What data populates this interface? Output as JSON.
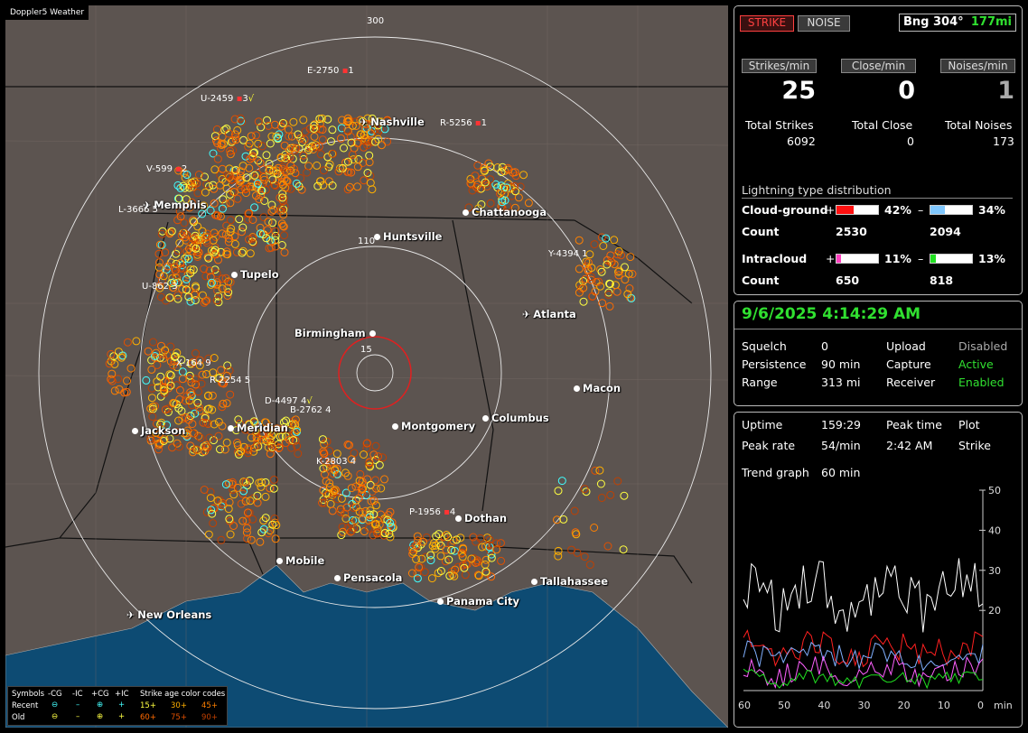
{
  "map": {
    "title": "Doppler5 Weather",
    "ring_labels": {
      "r300": "300",
      "r110": "110",
      "r15": "15"
    },
    "cities": [
      {
        "name": "Nashville",
        "airport": true
      },
      {
        "name": "Memphis",
        "airport": true
      },
      {
        "name": "Chattanooga",
        "airport": false
      },
      {
        "name": "Huntsville",
        "airport": false
      },
      {
        "name": "Tupelo",
        "airport": false
      },
      {
        "name": "Atlanta",
        "airport": true
      },
      {
        "name": "Birmingham",
        "airport": false
      },
      {
        "name": "Macon",
        "airport": false
      },
      {
        "name": "Jackson",
        "airport": false
      },
      {
        "name": "Meridian",
        "airport": false
      },
      {
        "name": "Montgomery",
        "airport": false
      },
      {
        "name": "Columbus",
        "airport": false
      },
      {
        "name": "Dothan",
        "airport": false
      },
      {
        "name": "Mobile",
        "airport": false
      },
      {
        "name": "Pensacola",
        "airport": false
      },
      {
        "name": "Tallahassee",
        "airport": false
      },
      {
        "name": "Panama City",
        "airport": false
      },
      {
        "name": "New Orleans",
        "airport": true
      }
    ],
    "stations": [
      {
        "id": "E-2750",
        "count": "1"
      },
      {
        "id": "U-2459",
        "count": "3"
      },
      {
        "id": "R-5256",
        "count": "1"
      },
      {
        "id": "V-599",
        "count": "2"
      },
      {
        "id": "L-3666",
        "count": "5"
      },
      {
        "id": "Y-4394",
        "count": "1"
      },
      {
        "id": "U-862",
        "count": "3"
      },
      {
        "id": "X-164",
        "count": "9"
      },
      {
        "id": "R-2254",
        "count": "5"
      },
      {
        "id": "D-4497",
        "count": "4"
      },
      {
        "id": "B-2762",
        "count": "4"
      },
      {
        "id": "K-2803",
        "count": "4"
      },
      {
        "id": "P-1956",
        "count": "4"
      }
    ],
    "legend": {
      "symbols_label": "Symbols",
      "cols": [
        "-CG",
        "-IC",
        "+CG",
        "+IC"
      ],
      "recent_label": "Recent",
      "old_label": "Old",
      "age_title": "Strike age color codes",
      "age_recent": [
        "15+",
        "30+",
        "45+"
      ],
      "age_old": [
        "60+",
        "75+",
        "90+"
      ],
      "age_colors": [
        "#ffff40",
        "#ffb000",
        "#ff8000",
        "#ff6a00",
        "#e05000",
        "#c04000"
      ]
    }
  },
  "status": {
    "strike_btn": "STRIKE",
    "noise_btn": "NOISE",
    "bearing_label": "Bng 304°",
    "distance": "177mi",
    "rates": [
      {
        "label": "Strikes/min",
        "value": "25",
        "total_label": "Total Strikes",
        "total": "6092"
      },
      {
        "label": "Close/min",
        "value": "0",
        "total_label": "Total Close",
        "total": "0"
      },
      {
        "label": "Noises/min",
        "value": "1",
        "total_label": "Total Noises",
        "total": "173"
      }
    ],
    "dist_title": "Lightning type distribution",
    "cg_label": "Cloud-ground",
    "ic_label": "Intracloud",
    "count_label": "Count",
    "cg_pos": {
      "sign": "+",
      "pct": "42%",
      "fraction": 0.42,
      "count": "2530",
      "color": "#ff1010"
    },
    "cg_neg": {
      "sign": "–",
      "pct": "34%",
      "fraction": 0.34,
      "count": "2094",
      "color": "#80c8ff"
    },
    "ic_pos": {
      "sign": "+",
      "pct": "11%",
      "fraction": 0.11,
      "count": "650",
      "color": "#ff40c0"
    },
    "ic_neg": {
      "sign": "–",
      "pct": "13%",
      "fraction": 0.13,
      "count": "818",
      "color": "#20e020"
    }
  },
  "info": {
    "datetime": "9/6/2025 4:14:29 AM",
    "squelch_label": "Squelch",
    "squelch": "0",
    "persistence_label": "Persistence",
    "persistence": "90 min",
    "range_label": "Range",
    "range": "313 mi",
    "upload_label": "Upload",
    "upload": "Disabled",
    "capture_label": "Capture",
    "capture": "Active",
    "receiver_label": "Receiver",
    "receiver": "Enabled"
  },
  "stats": {
    "uptime_label": "Uptime",
    "uptime": "159:29",
    "peak_time_label": "Peak time",
    "peak_time": "2:42 AM",
    "plot_label": "Plot",
    "plot": "Strike",
    "peak_rate_label": "Peak rate",
    "peak_rate": "54/min",
    "trend_label": "Trend graph",
    "trend": "60 min",
    "chart_data": {
      "type": "line",
      "x_ticks": [
        "60",
        "50",
        "40",
        "30",
        "20",
        "10",
        "0"
      ],
      "x_unit": "min",
      "y_ticks": [
        "50",
        "40",
        "30",
        "20"
      ],
      "ylim": [
        0,
        50
      ],
      "series_colors": {
        "strikes": "#ffffff",
        "cg_pos": "#ff2020",
        "cg_neg": "#80b0ff",
        "ic_pos": "#ff60ff",
        "ic_neg": "#20e020"
      }
    }
  }
}
